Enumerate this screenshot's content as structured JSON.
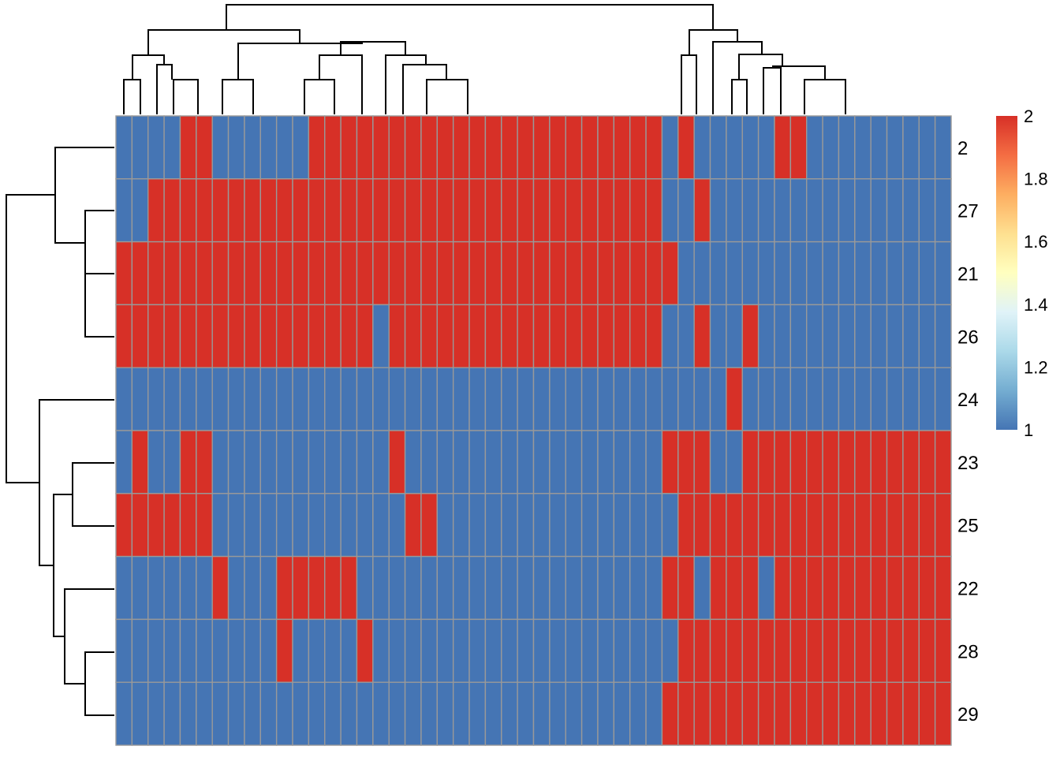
{
  "chart_data": {
    "type": "heatmap",
    "title": "",
    "rows": [
      "2",
      "27",
      "21",
      "26",
      "24",
      "23",
      "25",
      "22",
      "28",
      "29"
    ],
    "colors": {
      "low": "#4575B4",
      "high": "#D73027",
      "cell_border": "#999999",
      "gradient": [
        "#4575B4",
        "#74ADD1",
        "#ABD9E9",
        "#E0F3F8",
        "#FFFFBF",
        "#FEE090",
        "#FDAE61",
        "#F46D43",
        "#D73027"
      ]
    },
    "value_range": [
      1,
      2
    ],
    "legend": {
      "position": "right",
      "ticks": [
        "2",
        "1.8",
        "1.6",
        "1.4",
        "1.2",
        "1"
      ]
    },
    "column_dendrogram": true,
    "row_dendrogram": true,
    "matrix": [
      "1111221111112222222222222222222222121111122111111111",
      "1122222222222222222222222222222222112111111111111111",
      "2222222222222222222222222222222222211111111111111111",
      "2222222222222222122222222222222222112112111111111111",
      "1111111111111111111111111111111111111121111111111111",
      "1211221111111111121111111111111111222112222222222222",
      "2222221111111111112211111111111111122222222222222222",
      "1111112111222221111111111111111111221222122222222222",
      "1111111111211112111111111111111111122222222222222222",
      "1111111111111111111111111111111111222222222222222222"
    ]
  }
}
